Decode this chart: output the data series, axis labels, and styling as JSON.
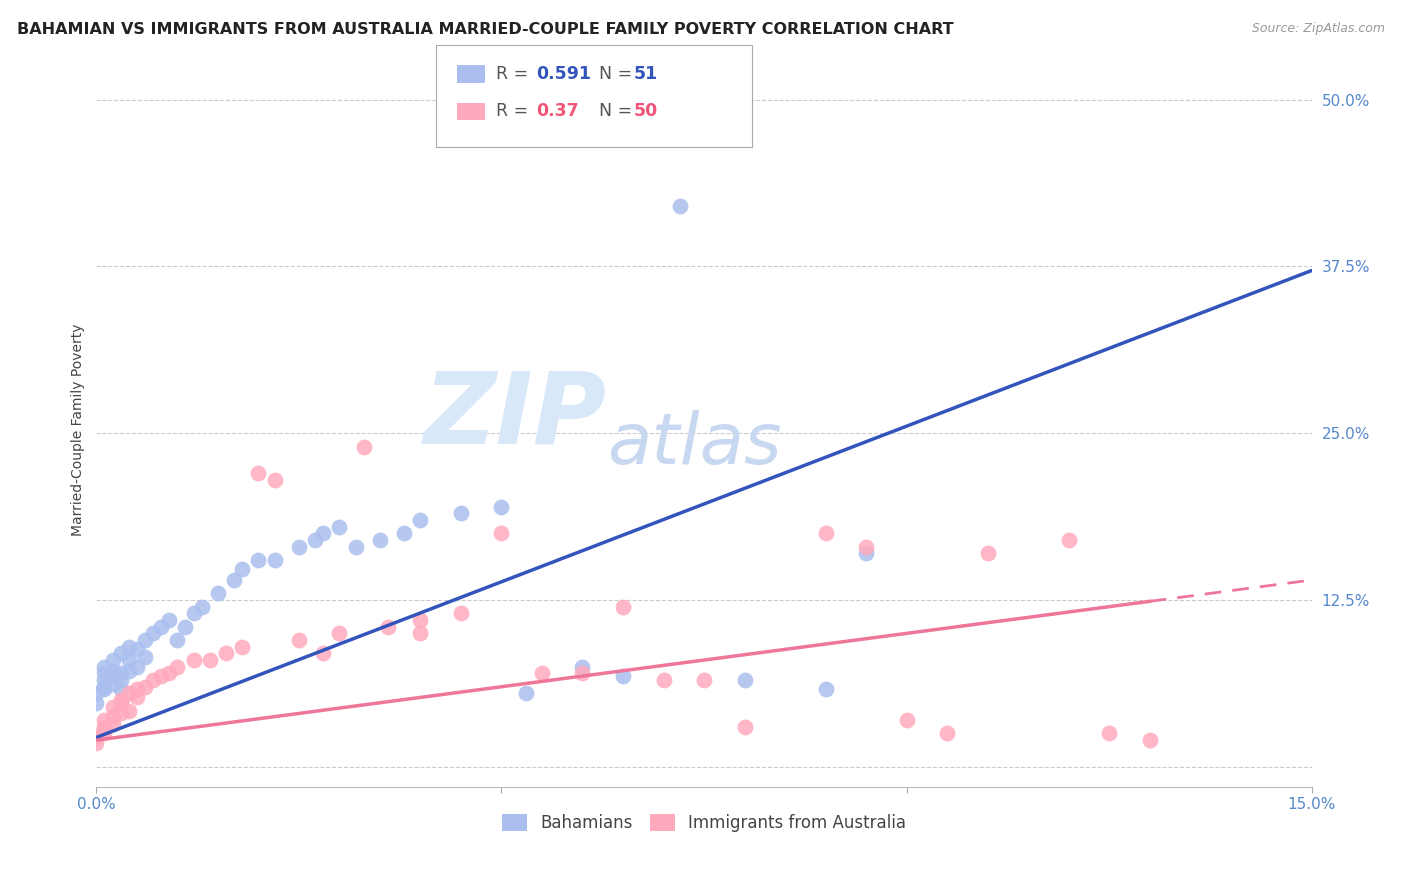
{
  "title": "BAHAMIAN VS IMMIGRANTS FROM AUSTRALIA MARRIED-COUPLE FAMILY POVERTY CORRELATION CHART",
  "source": "Source: ZipAtlas.com",
  "ylabel": "Married-Couple Family Poverty",
  "xlim": [
    0,
    0.15
  ],
  "ylim": [
    -0.015,
    0.52
  ],
  "xticks": [
    0.0,
    0.05,
    0.1,
    0.15
  ],
  "xticklabels": [
    "0.0%",
    "",
    "",
    "15.0%"
  ],
  "yticks": [
    0.0,
    0.125,
    0.25,
    0.375,
    0.5
  ],
  "yticklabels": [
    "",
    "12.5%",
    "25.0%",
    "37.5%",
    "50.0%"
  ],
  "blue_color": "#AABFEE",
  "pink_color": "#FFAABC",
  "blue_line_color": "#3355BB",
  "pink_line_color": "#EE7799",
  "title_fontsize": 11.5,
  "axis_label_fontsize": 10,
  "tick_fontsize": 11,
  "R_blue": 0.591,
  "N_blue": 51,
  "R_pink": 0.37,
  "N_pink": 50,
  "blue_slope": 2.333,
  "blue_intercept": 0.022,
  "pink_slope": 0.8,
  "pink_intercept": 0.02,
  "bahamian_x": [
    0.0,
    0.0,
    0.001,
    0.001,
    0.001,
    0.001,
    0.001,
    0.002,
    0.002,
    0.002,
    0.002,
    0.003,
    0.003,
    0.003,
    0.003,
    0.004,
    0.004,
    0.004,
    0.005,
    0.005,
    0.006,
    0.006,
    0.007,
    0.008,
    0.009,
    0.01,
    0.011,
    0.012,
    0.013,
    0.015,
    0.017,
    0.018,
    0.02,
    0.022,
    0.025,
    0.027,
    0.028,
    0.03,
    0.032,
    0.035,
    0.038,
    0.04,
    0.045,
    0.05,
    0.053,
    0.06,
    0.065,
    0.08,
    0.09,
    0.095,
    0.072
  ],
  "bahamian_y": [
    0.048,
    0.055,
    0.06,
    0.065,
    0.07,
    0.075,
    0.058,
    0.062,
    0.068,
    0.072,
    0.08,
    0.058,
    0.065,
    0.07,
    0.085,
    0.072,
    0.08,
    0.09,
    0.075,
    0.088,
    0.082,
    0.095,
    0.1,
    0.105,
    0.11,
    0.095,
    0.105,
    0.115,
    0.12,
    0.13,
    0.14,
    0.148,
    0.155,
    0.155,
    0.165,
    0.17,
    0.175,
    0.18,
    0.165,
    0.17,
    0.175,
    0.185,
    0.19,
    0.195,
    0.055,
    0.075,
    0.068,
    0.065,
    0.058,
    0.16,
    0.42
  ],
  "australia_x": [
    0.0,
    0.0,
    0.001,
    0.001,
    0.001,
    0.001,
    0.002,
    0.002,
    0.002,
    0.003,
    0.003,
    0.003,
    0.004,
    0.004,
    0.005,
    0.005,
    0.006,
    0.007,
    0.008,
    0.009,
    0.01,
    0.012,
    0.014,
    0.016,
    0.018,
    0.02,
    0.022,
    0.025,
    0.028,
    0.03,
    0.033,
    0.036,
    0.04,
    0.04,
    0.045,
    0.05,
    0.055,
    0.06,
    0.065,
    0.07,
    0.075,
    0.08,
    0.09,
    0.095,
    0.1,
    0.105,
    0.11,
    0.12,
    0.125,
    0.13
  ],
  "australia_y": [
    0.022,
    0.018,
    0.025,
    0.03,
    0.035,
    0.028,
    0.038,
    0.032,
    0.045,
    0.04,
    0.05,
    0.048,
    0.055,
    0.042,
    0.058,
    0.052,
    0.06,
    0.065,
    0.068,
    0.07,
    0.075,
    0.08,
    0.08,
    0.085,
    0.09,
    0.22,
    0.215,
    0.095,
    0.085,
    0.1,
    0.24,
    0.105,
    0.11,
    0.1,
    0.115,
    0.175,
    0.07,
    0.07,
    0.12,
    0.065,
    0.065,
    0.03,
    0.175,
    0.165,
    0.035,
    0.025,
    0.16,
    0.17,
    0.025,
    0.02
  ],
  "watermark_zip": "ZIP",
  "watermark_atlas": "atlas",
  "background_color": "#FFFFFF",
  "grid_color": "#CCCCCC"
}
